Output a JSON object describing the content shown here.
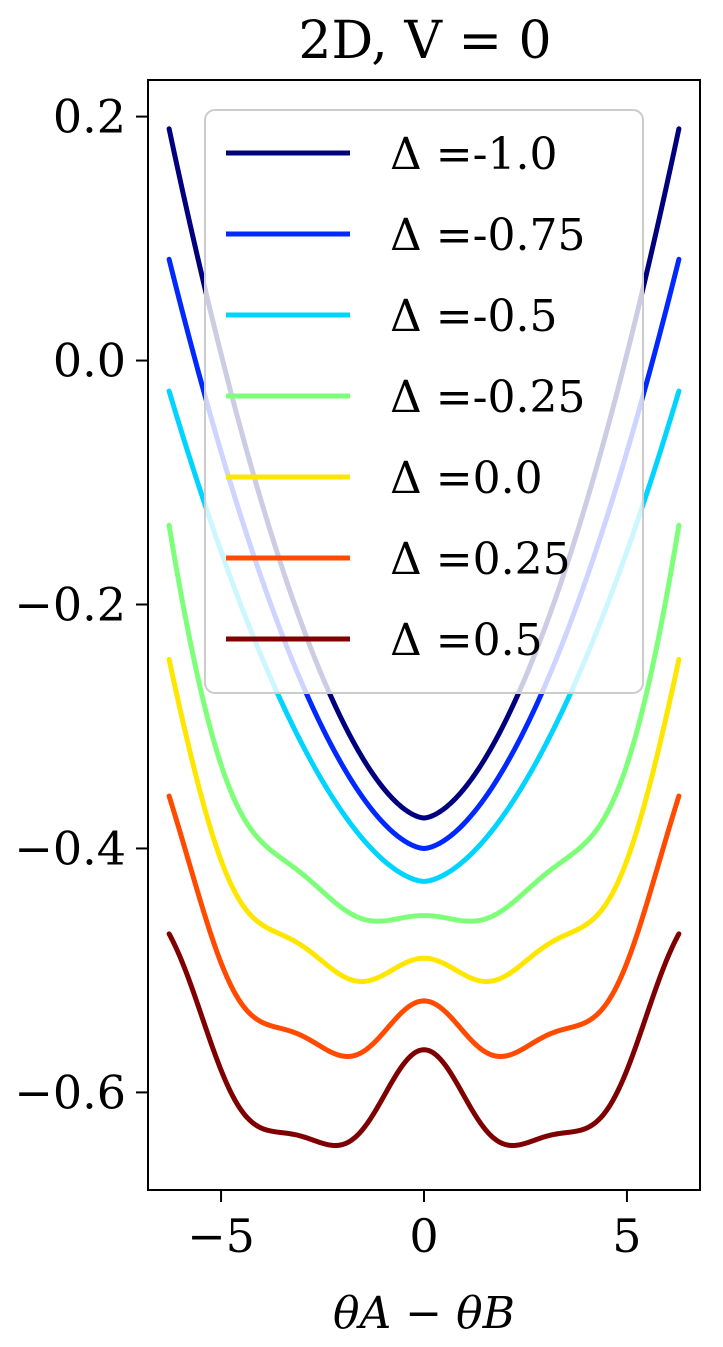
{
  "chart_data": {
    "type": "line",
    "title": "2D, V = 0",
    "xlabel": "θA − θB",
    "ylabel": "",
    "xlim": [
      -6.8,
      6.8
    ],
    "ylim": [
      -0.68,
      0.23
    ],
    "x_ticks": [
      -5,
      0,
      5
    ],
    "x_tick_labels": [
      "−5",
      "0",
      "5"
    ],
    "y_ticks": [
      0.2,
      0.0,
      -0.2,
      -0.4,
      -0.6
    ],
    "y_tick_labels": [
      "0.2",
      "0.0",
      "−0.2",
      "−0.4",
      "−0.6"
    ],
    "x_range": [
      -6.28,
      6.28
    ],
    "grid": false,
    "legend_position": "upper center",
    "series": [
      {
        "name": "Δ =-1.0",
        "color": "#00007f",
        "edge": 0.19,
        "center": -0.375,
        "min": -0.375,
        "min_x": 0.0
      },
      {
        "name": "Δ =-0.75",
        "color": "#0028ff",
        "edge": 0.083,
        "center": -0.4,
        "min": -0.4,
        "min_x": 0.0
      },
      {
        "name": "Δ =-0.5",
        "color": "#00d4ff",
        "edge": -0.025,
        "center": -0.427,
        "min": -0.427,
        "min_x": 0.0
      },
      {
        "name": "Δ =-0.25",
        "color": "#7dff7a",
        "edge": -0.135,
        "center": -0.455,
        "min": -0.46,
        "min_x": 1.2
      },
      {
        "name": "Δ =0.0",
        "color": "#ffe600",
        "edge": -0.245,
        "center": -0.49,
        "min": -0.51,
        "min_x": 1.6
      },
      {
        "name": "Δ =0.25",
        "color": "#ff4a00",
        "edge": -0.357,
        "center": -0.525,
        "min": -0.572,
        "min_x": 1.95
      },
      {
        "name": "Δ =0.5",
        "color": "#7f0000",
        "edge": -0.47,
        "center": -0.565,
        "min": -0.645,
        "min_x": 2.25
      }
    ]
  }
}
